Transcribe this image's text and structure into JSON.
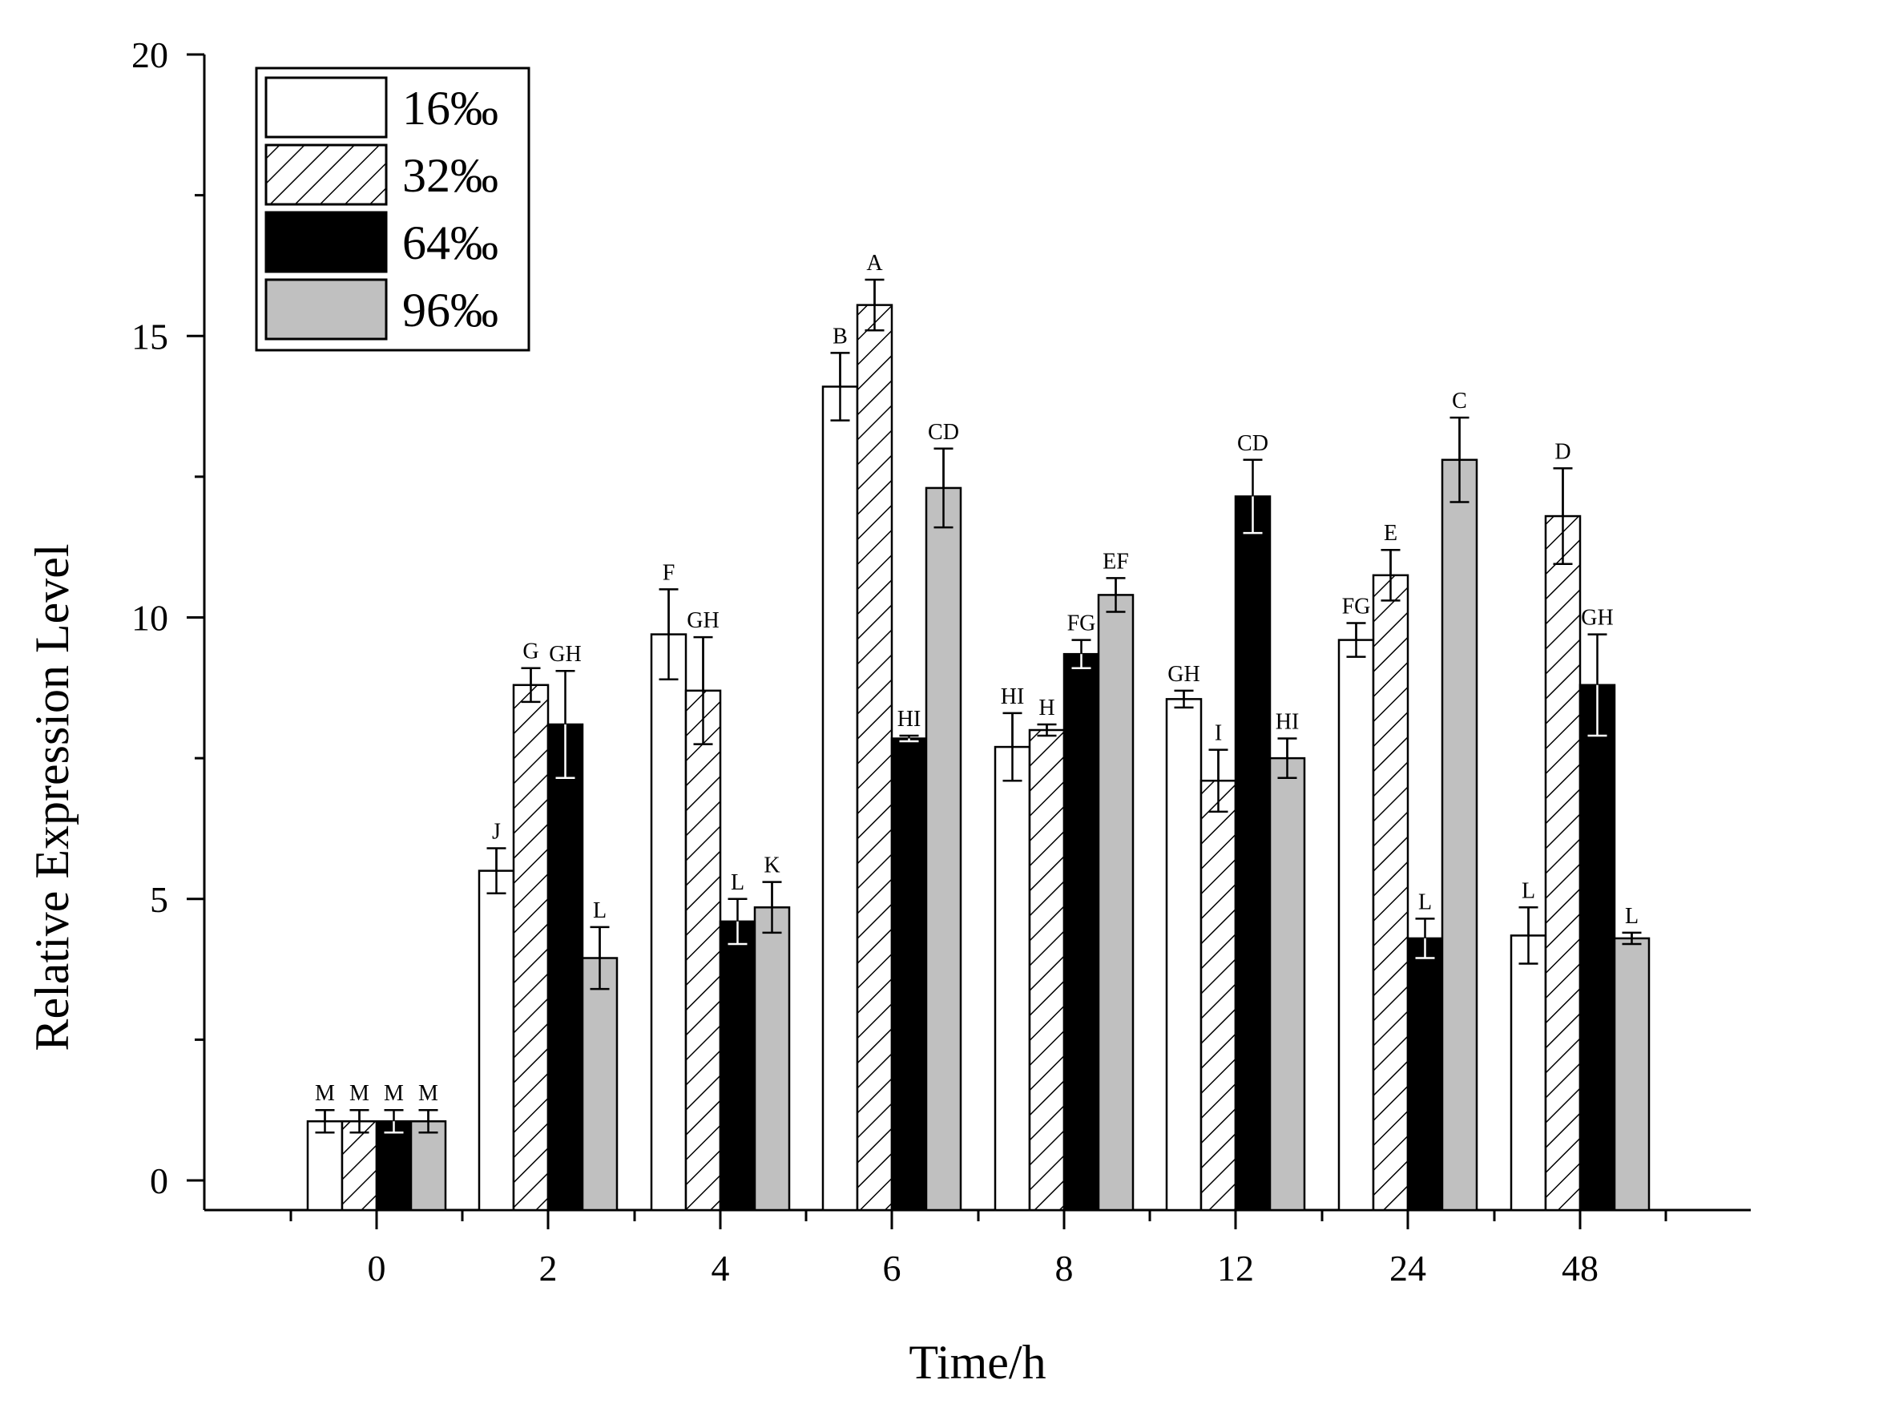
{
  "chart_data": {
    "type": "bar",
    "title": "",
    "xlabel": "Time/h",
    "ylabel": "Relative Expression Level",
    "ylim": [
      0,
      20
    ],
    "yticks": [
      0,
      5,
      10,
      15,
      20
    ],
    "categories": [
      "0",
      "2",
      "4",
      "6",
      "8",
      "12",
      "24",
      "48"
    ],
    "legend_position": "top-left",
    "series": [
      {
        "name": "16‰",
        "fill": "white",
        "values": [
          1.05,
          5.5,
          9.7,
          14.1,
          7.7,
          8.55,
          9.6,
          4.35
        ],
        "errors": [
          0.2,
          0.4,
          0.8,
          0.6,
          0.6,
          0.15,
          0.3,
          0.5
        ],
        "letters": [
          "M",
          "J",
          "F",
          "B",
          "HI",
          "GH",
          "FG",
          "L"
        ]
      },
      {
        "name": "32‰",
        "fill": "hatch",
        "values": [
          1.05,
          8.8,
          8.7,
          15.55,
          8.0,
          7.1,
          10.75,
          11.8
        ],
        "errors": [
          0.2,
          0.3,
          0.95,
          0.45,
          0.1,
          0.55,
          0.45,
          0.85
        ],
        "letters": [
          "M",
          "G",
          "GH",
          "A",
          "H",
          "I",
          "E",
          "D"
        ]
      },
      {
        "name": "64‰",
        "fill": "black",
        "values": [
          1.05,
          8.1,
          4.6,
          7.85,
          9.35,
          12.15,
          4.3,
          8.8
        ],
        "errors": [
          0.2,
          0.95,
          0.4,
          0.05,
          0.25,
          0.65,
          0.35,
          0.9
        ],
        "letters": [
          "M",
          "GH",
          "L",
          "HI",
          "FG",
          "CD",
          "L",
          "GH"
        ]
      },
      {
        "name": "96‰",
        "fill": "gray",
        "values": [
          1.05,
          3.95,
          4.85,
          12.3,
          10.4,
          7.5,
          12.8,
          4.3
        ],
        "errors": [
          0.2,
          0.55,
          0.45,
          0.7,
          0.3,
          0.35,
          0.75,
          0.1
        ],
        "letters": [
          "M",
          "L",
          "K",
          "CD",
          "EF",
          "HI",
          "C",
          "L"
        ]
      }
    ]
  },
  "colors": {
    "axis": "#000000",
    "white_fill": "#ffffff",
    "black_fill": "#000000",
    "gray_fill": "#c0c0c0",
    "hatch_line": "#000000"
  }
}
